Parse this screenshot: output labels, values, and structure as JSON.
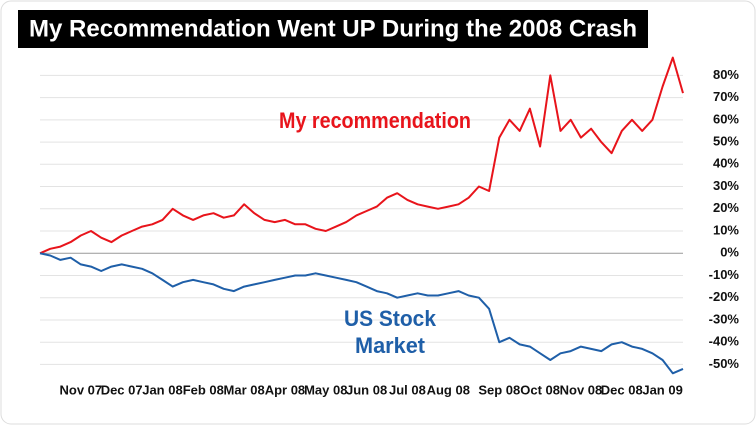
{
  "chart_data": {
    "type": "line",
    "title": "My Recommendation Went UP During the 2008 Crash",
    "annotations": [
      "My recommendation",
      "US Stock",
      "Market"
    ],
    "categories": [
      null,
      null,
      null,
      null,
      "Nov 07",
      null,
      null,
      null,
      "Dec 07",
      null,
      null,
      null,
      "Jan 08",
      null,
      null,
      null,
      "Feb 08",
      null,
      null,
      null,
      "Mar 08",
      null,
      null,
      null,
      "Apr 08",
      null,
      null,
      null,
      "May 08",
      null,
      null,
      null,
      "Jun 08",
      null,
      null,
      null,
      "Jul 08",
      null,
      null,
      null,
      "Aug 08",
      null,
      null,
      null,
      null,
      "Sep 08",
      null,
      null,
      null,
      "Oct 08",
      null,
      null,
      null,
      "Nov 08",
      null,
      null,
      null,
      "Dec 08",
      null,
      null,
      null,
      "Jan 09",
      null,
      null
    ],
    "series": [
      {
        "color": "#e8141b",
        "values": [
          0,
          2,
          3,
          5,
          8,
          10,
          7,
          5,
          8,
          10,
          12,
          13,
          15,
          20,
          17,
          15,
          17,
          18,
          16,
          17,
          22,
          18,
          15,
          14,
          15,
          13,
          13,
          11,
          10,
          12,
          14,
          17,
          19,
          21,
          25,
          27,
          24,
          22,
          21,
          20,
          21,
          22,
          25,
          30,
          28,
          52,
          60,
          55,
          65,
          48,
          80,
          55,
          60,
          52,
          56,
          50,
          45,
          55,
          60,
          55,
          60,
          75,
          88,
          72
        ]
      },
      {
        "color": "#1f5fa8",
        "values": [
          0,
          -1,
          -3,
          -2,
          -5,
          -6,
          -8,
          -6,
          -5,
          -6,
          -7,
          -9,
          -12,
          -15,
          -13,
          -12,
          -13,
          -14,
          -16,
          -17,
          -15,
          -14,
          -13,
          -12,
          -11,
          -10,
          -10,
          -9,
          -10,
          -11,
          -12,
          -13,
          -15,
          -17,
          -18,
          -20,
          -19,
          -18,
          -19,
          -19,
          -18,
          -17,
          -19,
          -20,
          -25,
          -40,
          -38,
          -41,
          -42,
          -45,
          -48,
          -45,
          -44,
          -42,
          -43,
          -44,
          -41,
          -40,
          -42,
          -43,
          -45,
          -48,
          -54,
          -52
        ]
      }
    ],
    "ylim": [
      -57,
      95
    ],
    "yticks": [
      {
        "value": -50,
        "label": "-50%"
      },
      {
        "value": -40,
        "label": "-40%"
      },
      {
        "value": -30,
        "label": "-30%"
      },
      {
        "value": -20,
        "label": "-20%"
      },
      {
        "value": -10,
        "label": "-10%"
      },
      {
        "value": 0,
        "label": "0%"
      },
      {
        "value": 10,
        "label": "10%"
      },
      {
        "value": 20,
        "label": "20%"
      },
      {
        "value": 30,
        "label": "30%"
      },
      {
        "value": 40,
        "label": "40%"
      },
      {
        "value": 50,
        "label": "50%"
      },
      {
        "value": 60,
        "label": "60%"
      },
      {
        "value": 70,
        "label": "70%"
      },
      {
        "value": 80,
        "label": "80%"
      }
    ],
    "grid": true
  }
}
